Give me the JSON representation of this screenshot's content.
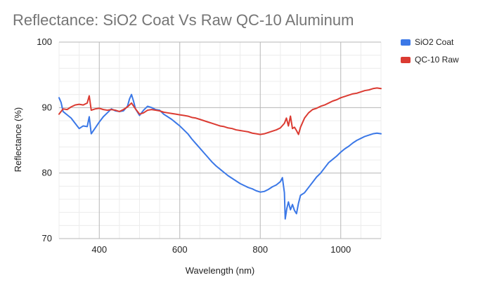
{
  "chart_data": {
    "type": "line",
    "title": "Reflectance: SiO2 Coat Vs Raw QC-10 Aluminum",
    "xlabel": "Wavelength (nm)",
    "ylabel": "Reflectance (%)",
    "xlim": [
      300,
      1100
    ],
    "ylim": [
      70,
      100
    ],
    "x_ticks": [
      400,
      600,
      800,
      1000
    ],
    "y_ticks": [
      70,
      80,
      90,
      100
    ],
    "x_tick_labels": [
      "400",
      "600",
      "800",
      "1000"
    ],
    "y_tick_labels": [
      "70",
      "80",
      "90",
      "100"
    ],
    "legend_position": "right",
    "grid": true,
    "series": [
      {
        "name": "SiO2 Coat",
        "color": "#3b78e7",
        "points": [
          [
            300,
            91.5
          ],
          [
            305,
            90.8
          ],
          [
            310,
            89.4
          ],
          [
            320,
            88.9
          ],
          [
            330,
            88.4
          ],
          [
            340,
            87.6
          ],
          [
            350,
            86.8
          ],
          [
            360,
            87.2
          ],
          [
            370,
            87.1
          ],
          [
            375,
            88.6
          ],
          [
            380,
            86.0
          ],
          [
            390,
            86.9
          ],
          [
            400,
            87.8
          ],
          [
            410,
            88.6
          ],
          [
            420,
            89.2
          ],
          [
            430,
            89.8
          ],
          [
            440,
            89.5
          ],
          [
            450,
            89.4
          ],
          [
            460,
            89.5
          ],
          [
            470,
            90.2
          ],
          [
            475,
            91.3
          ],
          [
            480,
            92.0
          ],
          [
            485,
            91.0
          ],
          [
            490,
            89.8
          ],
          [
            500,
            88.8
          ],
          [
            510,
            89.6
          ],
          [
            520,
            90.2
          ],
          [
            530,
            90.0
          ],
          [
            540,
            89.7
          ],
          [
            550,
            89.6
          ],
          [
            560,
            89.0
          ],
          [
            570,
            88.6
          ],
          [
            580,
            88.2
          ],
          [
            590,
            87.7
          ],
          [
            600,
            87.2
          ],
          [
            610,
            86.6
          ],
          [
            620,
            86.0
          ],
          [
            630,
            85.2
          ],
          [
            640,
            84.5
          ],
          [
            650,
            83.8
          ],
          [
            660,
            83.1
          ],
          [
            670,
            82.4
          ],
          [
            680,
            81.7
          ],
          [
            690,
            81.1
          ],
          [
            700,
            80.6
          ],
          [
            710,
            80.1
          ],
          [
            720,
            79.6
          ],
          [
            730,
            79.2
          ],
          [
            740,
            78.8
          ],
          [
            750,
            78.4
          ],
          [
            760,
            78.1
          ],
          [
            770,
            77.8
          ],
          [
            780,
            77.6
          ],
          [
            790,
            77.3
          ],
          [
            800,
            77.1
          ],
          [
            810,
            77.2
          ],
          [
            820,
            77.5
          ],
          [
            830,
            77.9
          ],
          [
            840,
            78.2
          ],
          [
            850,
            78.7
          ],
          [
            855,
            79.3
          ],
          [
            860,
            77.0
          ],
          [
            862,
            73.0
          ],
          [
            866,
            74.6
          ],
          [
            870,
            75.6
          ],
          [
            875,
            74.4
          ],
          [
            880,
            75.2
          ],
          [
            885,
            74.3
          ],
          [
            890,
            73.8
          ],
          [
            895,
            75.4
          ],
          [
            900,
            76.6
          ],
          [
            910,
            77.0
          ],
          [
            920,
            77.8
          ],
          [
            930,
            78.6
          ],
          [
            940,
            79.4
          ],
          [
            950,
            80.0
          ],
          [
            960,
            80.8
          ],
          [
            970,
            81.6
          ],
          [
            980,
            82.1
          ],
          [
            990,
            82.6
          ],
          [
            1000,
            83.2
          ],
          [
            1010,
            83.7
          ],
          [
            1020,
            84.1
          ],
          [
            1030,
            84.6
          ],
          [
            1040,
            85.0
          ],
          [
            1050,
            85.3
          ],
          [
            1060,
            85.6
          ],
          [
            1070,
            85.8
          ],
          [
            1080,
            86.0
          ],
          [
            1090,
            86.1
          ],
          [
            1100,
            86.0
          ]
        ]
      },
      {
        "name": "QC-10 Raw",
        "color": "#db3b32",
        "points": [
          [
            300,
            89.0
          ],
          [
            310,
            89.8
          ],
          [
            320,
            89.7
          ],
          [
            330,
            90.1
          ],
          [
            340,
            90.4
          ],
          [
            350,
            90.5
          ],
          [
            360,
            90.4
          ],
          [
            370,
            90.7
          ],
          [
            375,
            91.8
          ],
          [
            380,
            89.6
          ],
          [
            390,
            89.8
          ],
          [
            400,
            89.9
          ],
          [
            410,
            89.7
          ],
          [
            420,
            89.6
          ],
          [
            430,
            89.7
          ],
          [
            440,
            89.6
          ],
          [
            450,
            89.4
          ],
          [
            460,
            89.7
          ],
          [
            470,
            90.1
          ],
          [
            480,
            90.7
          ],
          [
            490,
            89.8
          ],
          [
            500,
            89.0
          ],
          [
            510,
            89.2
          ],
          [
            520,
            89.6
          ],
          [
            530,
            89.7
          ],
          [
            540,
            89.6
          ],
          [
            550,
            89.5
          ],
          [
            560,
            89.3
          ],
          [
            570,
            89.2
          ],
          [
            580,
            89.1
          ],
          [
            590,
            89.0
          ],
          [
            600,
            88.9
          ],
          [
            610,
            88.8
          ],
          [
            620,
            88.7
          ],
          [
            630,
            88.5
          ],
          [
            640,
            88.4
          ],
          [
            650,
            88.2
          ],
          [
            660,
            88.0
          ],
          [
            670,
            87.8
          ],
          [
            680,
            87.6
          ],
          [
            690,
            87.4
          ],
          [
            700,
            87.2
          ],
          [
            710,
            87.1
          ],
          [
            720,
            86.9
          ],
          [
            730,
            86.8
          ],
          [
            740,
            86.6
          ],
          [
            750,
            86.5
          ],
          [
            760,
            86.4
          ],
          [
            770,
            86.3
          ],
          [
            780,
            86.1
          ],
          [
            790,
            86.0
          ],
          [
            800,
            85.9
          ],
          [
            810,
            86.0
          ],
          [
            820,
            86.2
          ],
          [
            830,
            86.4
          ],
          [
            840,
            86.6
          ],
          [
            850,
            86.9
          ],
          [
            860,
            87.6
          ],
          [
            865,
            88.4
          ],
          [
            870,
            87.2
          ],
          [
            875,
            88.7
          ],
          [
            880,
            86.8
          ],
          [
            885,
            87.0
          ],
          [
            890,
            86.5
          ],
          [
            895,
            85.9
          ],
          [
            900,
            87.0
          ],
          [
            910,
            88.4
          ],
          [
            920,
            89.2
          ],
          [
            930,
            89.7
          ],
          [
            940,
            89.9
          ],
          [
            950,
            90.2
          ],
          [
            960,
            90.4
          ],
          [
            970,
            90.7
          ],
          [
            980,
            91.0
          ],
          [
            990,
            91.2
          ],
          [
            1000,
            91.5
          ],
          [
            1010,
            91.7
          ],
          [
            1020,
            91.9
          ],
          [
            1030,
            92.1
          ],
          [
            1040,
            92.2
          ],
          [
            1050,
            92.4
          ],
          [
            1060,
            92.6
          ],
          [
            1070,
            92.7
          ],
          [
            1080,
            92.9
          ],
          [
            1090,
            93.0
          ],
          [
            1100,
            92.9
          ]
        ]
      }
    ]
  }
}
